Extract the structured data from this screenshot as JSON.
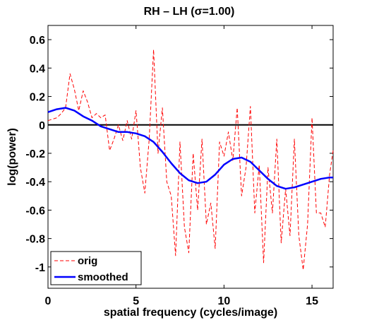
{
  "chart_data": {
    "type": "line",
    "title": "RH – LH (σ=1.00)",
    "xlabel": "spatial frequency (cycles/image)",
    "ylabel": "log(power)",
    "xlim": [
      0,
      16.2
    ],
    "ylim": [
      -1.15,
      0.7
    ],
    "xticks": [
      0,
      5,
      10,
      15
    ],
    "yticks": [
      0.6,
      0.4,
      0.2,
      0,
      -0.2,
      -0.4,
      -0.6,
      -0.8,
      -1
    ],
    "grid": false,
    "zero_line": true,
    "legend_position": "bottom-left",
    "series": [
      {
        "name": "orig",
        "color": "#ff0000",
        "style": "dashed",
        "x": [
          0,
          0.25,
          0.5,
          0.75,
          1,
          1.25,
          1.5,
          1.75,
          2,
          2.25,
          2.5,
          2.75,
          3,
          3.25,
          3.5,
          3.75,
          4,
          4.25,
          4.5,
          4.75,
          5,
          5.25,
          5.5,
          5.75,
          6,
          6.25,
          6.5,
          6.75,
          7,
          7.25,
          7.5,
          7.75,
          8,
          8.25,
          8.5,
          8.75,
          9,
          9.25,
          9.5,
          9.75,
          10,
          10.25,
          10.5,
          10.75,
          11,
          11.25,
          11.5,
          11.75,
          12,
          12.25,
          12.5,
          12.75,
          13,
          13.25,
          13.5,
          13.75,
          14,
          14.25,
          14.5,
          14.75,
          15,
          15.25,
          15.5,
          15.75,
          16,
          16.2
        ],
        "y": [
          0.03,
          0.04,
          0.05,
          0.08,
          0.12,
          0.36,
          0.25,
          0.1,
          0.24,
          0.16,
          0.05,
          0.08,
          0.05,
          0.07,
          -0.18,
          -0.1,
          0.0,
          -0.11,
          0.03,
          -0.1,
          0.1,
          -0.3,
          -0.48,
          -0.1,
          0.53,
          -0.2,
          0.12,
          -0.4,
          -0.5,
          -0.92,
          -0.12,
          -0.72,
          -0.9,
          -0.2,
          -0.6,
          -0.1,
          -0.7,
          -0.55,
          -0.87,
          -0.12,
          -0.22,
          -0.05,
          -0.25,
          0.12,
          -0.5,
          -0.3,
          0.13,
          -0.62,
          -0.28,
          -0.97,
          -0.3,
          -0.62,
          -0.1,
          -0.83,
          -0.45,
          -0.78,
          -0.1,
          -0.78,
          -1.02,
          -0.7,
          0.05,
          -0.62,
          -0.62,
          -0.72,
          -0.35,
          -0.18
        ]
      },
      {
        "name": "smoothed",
        "color": "#0000ff",
        "style": "solid",
        "x": [
          0,
          0.5,
          1,
          1.5,
          2,
          2.5,
          3,
          3.5,
          4,
          4.5,
          5,
          5.5,
          6,
          6.5,
          7,
          7.5,
          8,
          8.5,
          9,
          9.5,
          10,
          10.5,
          11,
          11.5,
          12,
          12.5,
          13,
          13.5,
          14,
          14.5,
          15,
          15.5,
          16,
          16.2
        ],
        "y": [
          0.09,
          0.11,
          0.12,
          0.1,
          0.06,
          0.03,
          -0.01,
          -0.03,
          -0.05,
          -0.05,
          -0.06,
          -0.08,
          -0.12,
          -0.19,
          -0.27,
          -0.34,
          -0.39,
          -0.41,
          -0.4,
          -0.35,
          -0.28,
          -0.24,
          -0.23,
          -0.26,
          -0.32,
          -0.38,
          -0.43,
          -0.45,
          -0.44,
          -0.42,
          -0.4,
          -0.38,
          -0.37,
          -0.37
        ]
      }
    ]
  }
}
